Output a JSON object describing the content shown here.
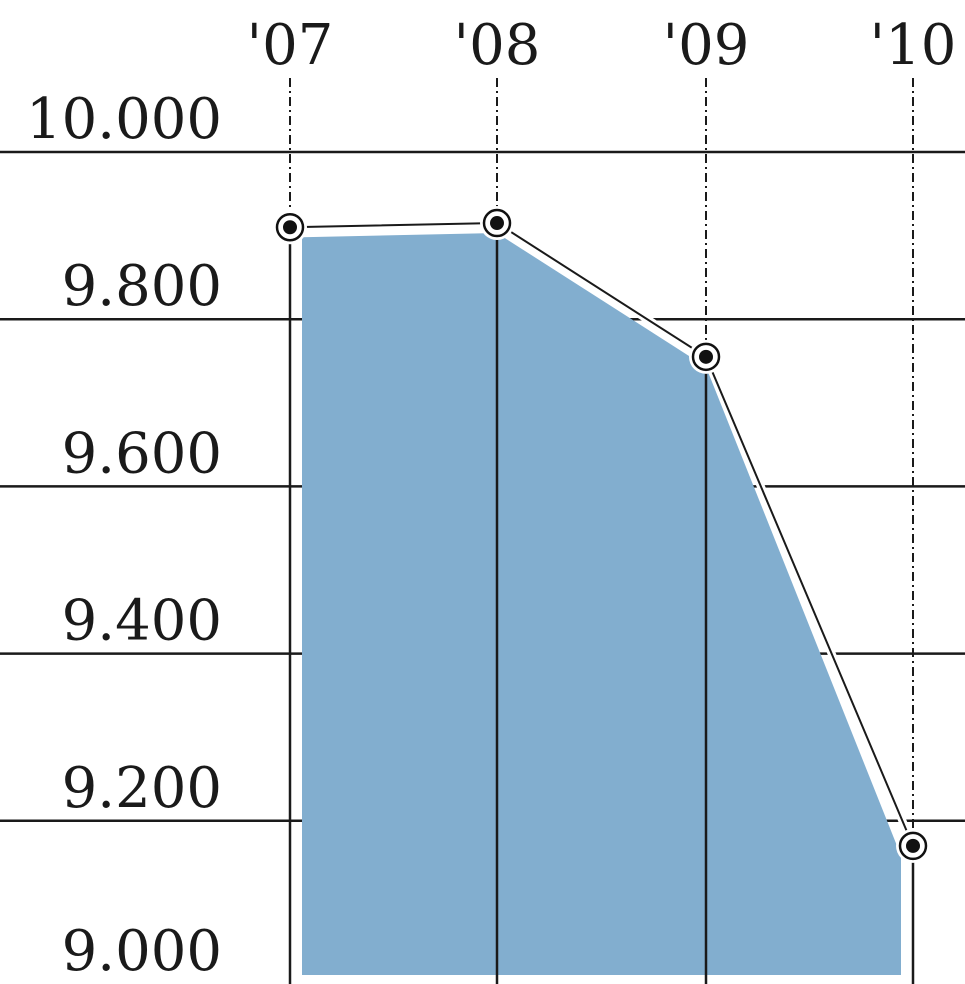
{
  "chart_data": {
    "type": "area",
    "title": "",
    "xlabel": "",
    "ylabel": "",
    "x": [
      "'07",
      "'08",
      "'09",
      "'10"
    ],
    "series": [
      {
        "values": [
          9910,
          9915,
          9755,
          9170
        ]
      }
    ],
    "y_ticks": [
      "10.000",
      "9.800",
      "9.600",
      "9.400",
      "9.200",
      "9.000"
    ],
    "y_tick_values": [
      10000,
      9800,
      9600,
      9400,
      9200,
      9000
    ],
    "ylim": [
      9000,
      10000
    ],
    "grid": true,
    "legend": "none",
    "colors": {
      "fill": "#82aecf",
      "line": "#1a1a1a",
      "grid": "#1a1a1a",
      "marker": "#111111"
    }
  }
}
